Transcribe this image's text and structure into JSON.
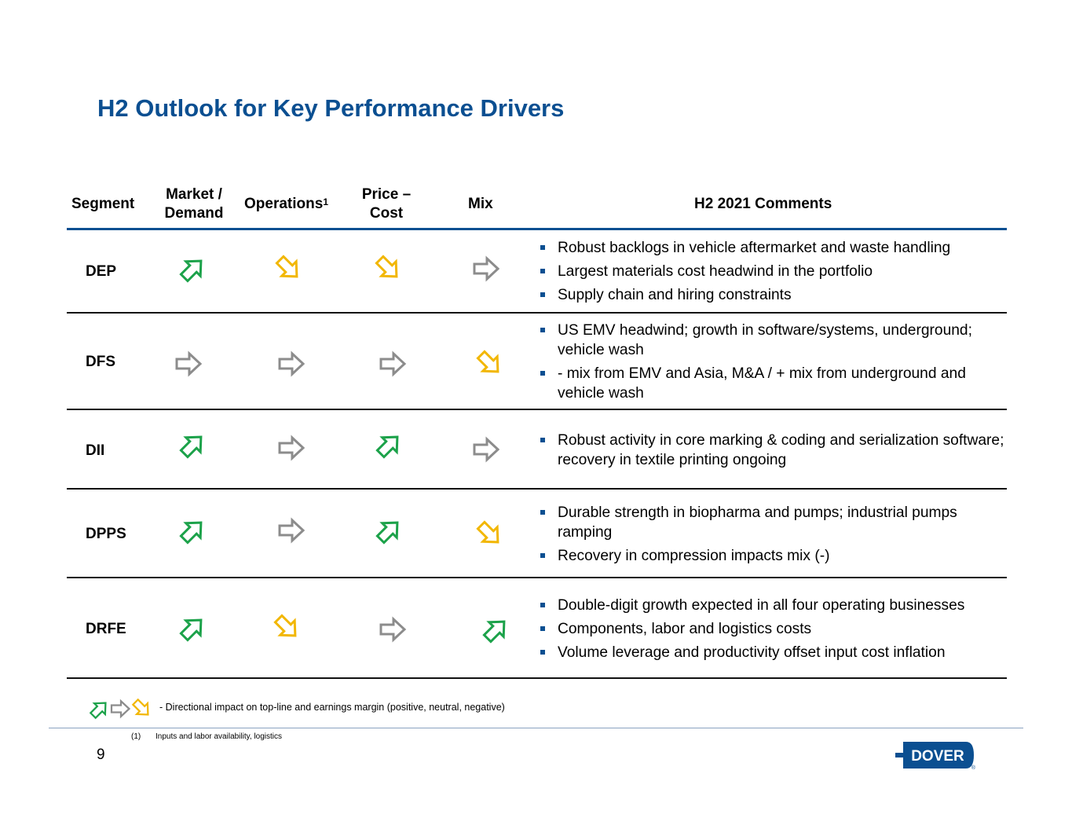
{
  "title": "H2 Outlook for Key Performance Drivers",
  "headers": {
    "segment": "Segment",
    "market_l1": "Market /",
    "market_l2": "Demand",
    "operations": "Operations",
    "operations_sup": "1",
    "price_l1": "Price –",
    "price_l2": "Cost",
    "mix": "Mix",
    "comments": "H2 2021 Comments"
  },
  "colors": {
    "title": "#0b4f91",
    "positive": "#1ca24a",
    "neutral": "#8c8c8c",
    "negative": "#f2b705",
    "bullet": "#0b4f91"
  },
  "rows": [
    {
      "segment": "DEP",
      "market": "positive",
      "operations": "negative",
      "price": "negative",
      "mix": "neutral",
      "comments": [
        "Robust backlogs in vehicle aftermarket and waste handling",
        "Largest materials cost headwind in the portfolio",
        "Supply chain and hiring constraints"
      ]
    },
    {
      "segment": "DFS",
      "market": "neutral",
      "operations": "neutral",
      "price": "neutral",
      "mix": "negative",
      "comments": [
        "US EMV headwind; growth in software/systems, underground; vehicle wash",
        "- mix from EMV and Asia, M&A / + mix from underground and vehicle wash"
      ]
    },
    {
      "segment": "DII",
      "market": "positive",
      "operations": "neutral",
      "price": "positive",
      "mix": "neutral",
      "comments": [
        "Robust activity in core marking & coding and serialization software; recovery in textile printing ongoing"
      ]
    },
    {
      "segment": "DPPS",
      "market": "positive",
      "operations": "neutral",
      "price": "positive",
      "mix": "negative",
      "comments": [
        "Durable strength in biopharma and pumps; industrial pumps ramping",
        "Recovery in compression impacts mix (-)"
      ]
    },
    {
      "segment": "DRFE",
      "market": "positive",
      "operations": "negative",
      "price": "neutral",
      "mix": "positive",
      "comments": [
        "Double-digit growth expected in all four operating businesses",
        "Components, labor and logistics costs",
        "Volume leverage and productivity offset input cost inflation"
      ]
    }
  ],
  "legend_text": "- Directional impact on top-line and earnings margin (positive, neutral, negative)",
  "footnote": {
    "num": "(1)",
    "text": "Inputs and labor availability, logistics"
  },
  "page_number": "9",
  "logo": {
    "text": "DOVER",
    "mark": "®"
  }
}
